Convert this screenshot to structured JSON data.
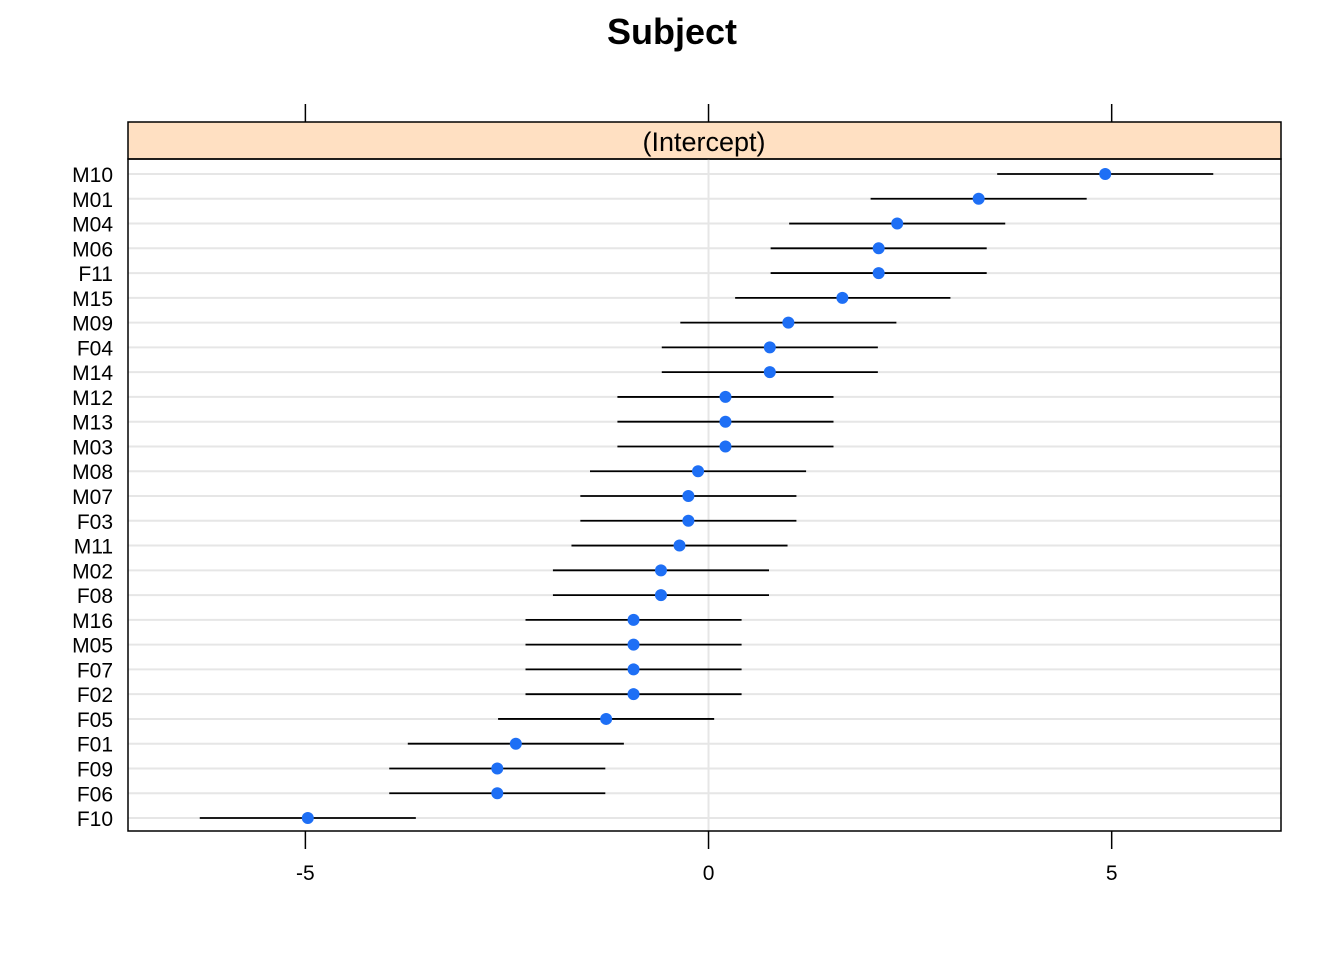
{
  "chart_data": {
    "type": "dotplot",
    "title": "Subject",
    "strip_label": "(Intercept)",
    "xlim": [
      -7.2,
      7.1
    ],
    "x_ticks": [
      -5,
      0,
      5
    ],
    "x_tick_labels": [
      "-5",
      "0",
      "5"
    ],
    "categories": [
      "M10",
      "M01",
      "M04",
      "M06",
      "F11",
      "M15",
      "M09",
      "F04",
      "M14",
      "M12",
      "M13",
      "M03",
      "M08",
      "M07",
      "F03",
      "M11",
      "M02",
      "F08",
      "M16",
      "M05",
      "F07",
      "F02",
      "F05",
      "F01",
      "F09",
      "F06",
      "F10"
    ],
    "estimates": [
      4.92,
      3.35,
      2.34,
      2.11,
      2.11,
      1.66,
      0.99,
      0.76,
      0.76,
      0.21,
      0.21,
      0.21,
      -0.13,
      -0.25,
      -0.25,
      -0.36,
      -0.59,
      -0.59,
      -0.93,
      -0.93,
      -0.93,
      -0.93,
      -1.27,
      -2.39,
      -2.62,
      -2.62,
      -4.97
    ],
    "lower": [
      3.58,
      2.01,
      1.0,
      0.77,
      0.77,
      0.33,
      -0.35,
      -0.58,
      -0.58,
      -1.13,
      -1.13,
      -1.13,
      -1.47,
      -1.59,
      -1.59,
      -1.7,
      -1.93,
      -1.93,
      -2.27,
      -2.27,
      -2.27,
      -2.27,
      -2.61,
      -3.73,
      -3.96,
      -3.96,
      -6.31
    ],
    "upper": [
      6.26,
      4.69,
      3.68,
      3.45,
      3.45,
      3.0,
      2.33,
      2.1,
      2.1,
      1.55,
      1.55,
      1.55,
      1.21,
      1.09,
      1.09,
      0.98,
      0.75,
      0.75,
      0.41,
      0.41,
      0.41,
      0.41,
      0.07,
      -1.05,
      -1.28,
      -1.28,
      -3.63
    ],
    "grid": true,
    "colors": {
      "point": "#1e6ff5",
      "interval": "#000000",
      "strip_bg": "#ffe0c2",
      "gridline": "#e6e6e6",
      "zero_line": "#e6e6e6"
    }
  }
}
